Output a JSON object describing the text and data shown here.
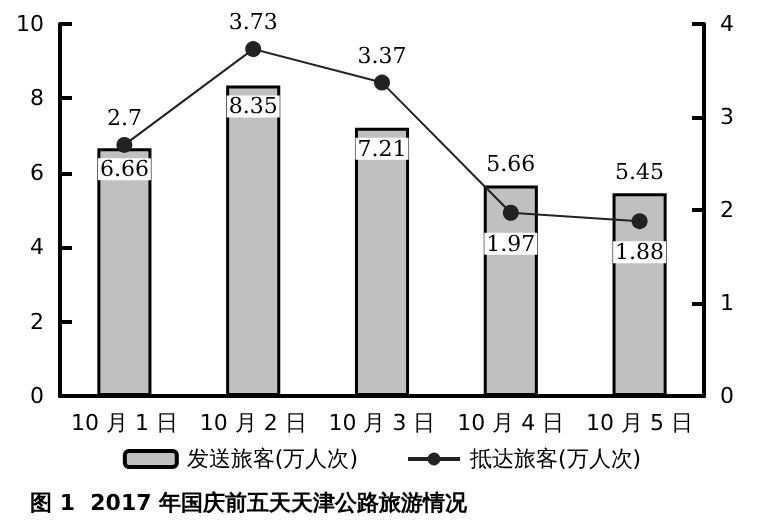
{
  "chart_data": {
    "type": "bar",
    "title": "图 1  2017 年国庆前五天天津公路旅游情况",
    "categories": [
      "10 月 1 日",
      "10 月 2 日",
      "10 月 3 日",
      "10 月 4 日",
      "10 月 5 日"
    ],
    "series": [
      {
        "name": "发送旅客(万人次)",
        "color": "#c0c0c0",
        "values": [
          6.66,
          8.35,
          7.21,
          5.66,
          5.45
        ]
      },
      {
        "name": "抵达旅客(万人次)",
        "type": "line",
        "axis": "y2",
        "color": "#222222",
        "values": [
          2.7,
          3.73,
          3.37,
          1.97,
          1.88
        ]
      }
    ],
    "ylim": [
      0,
      10
    ],
    "yticks": [
      0,
      2,
      4,
      6,
      8,
      10
    ],
    "y2lim": [
      0,
      4
    ],
    "y2ticks": [
      0,
      1,
      2,
      3,
      4
    ],
    "data_labels": true,
    "grid": false,
    "legend": "bottom",
    "marker": "circle",
    "line_style": "solid"
  }
}
